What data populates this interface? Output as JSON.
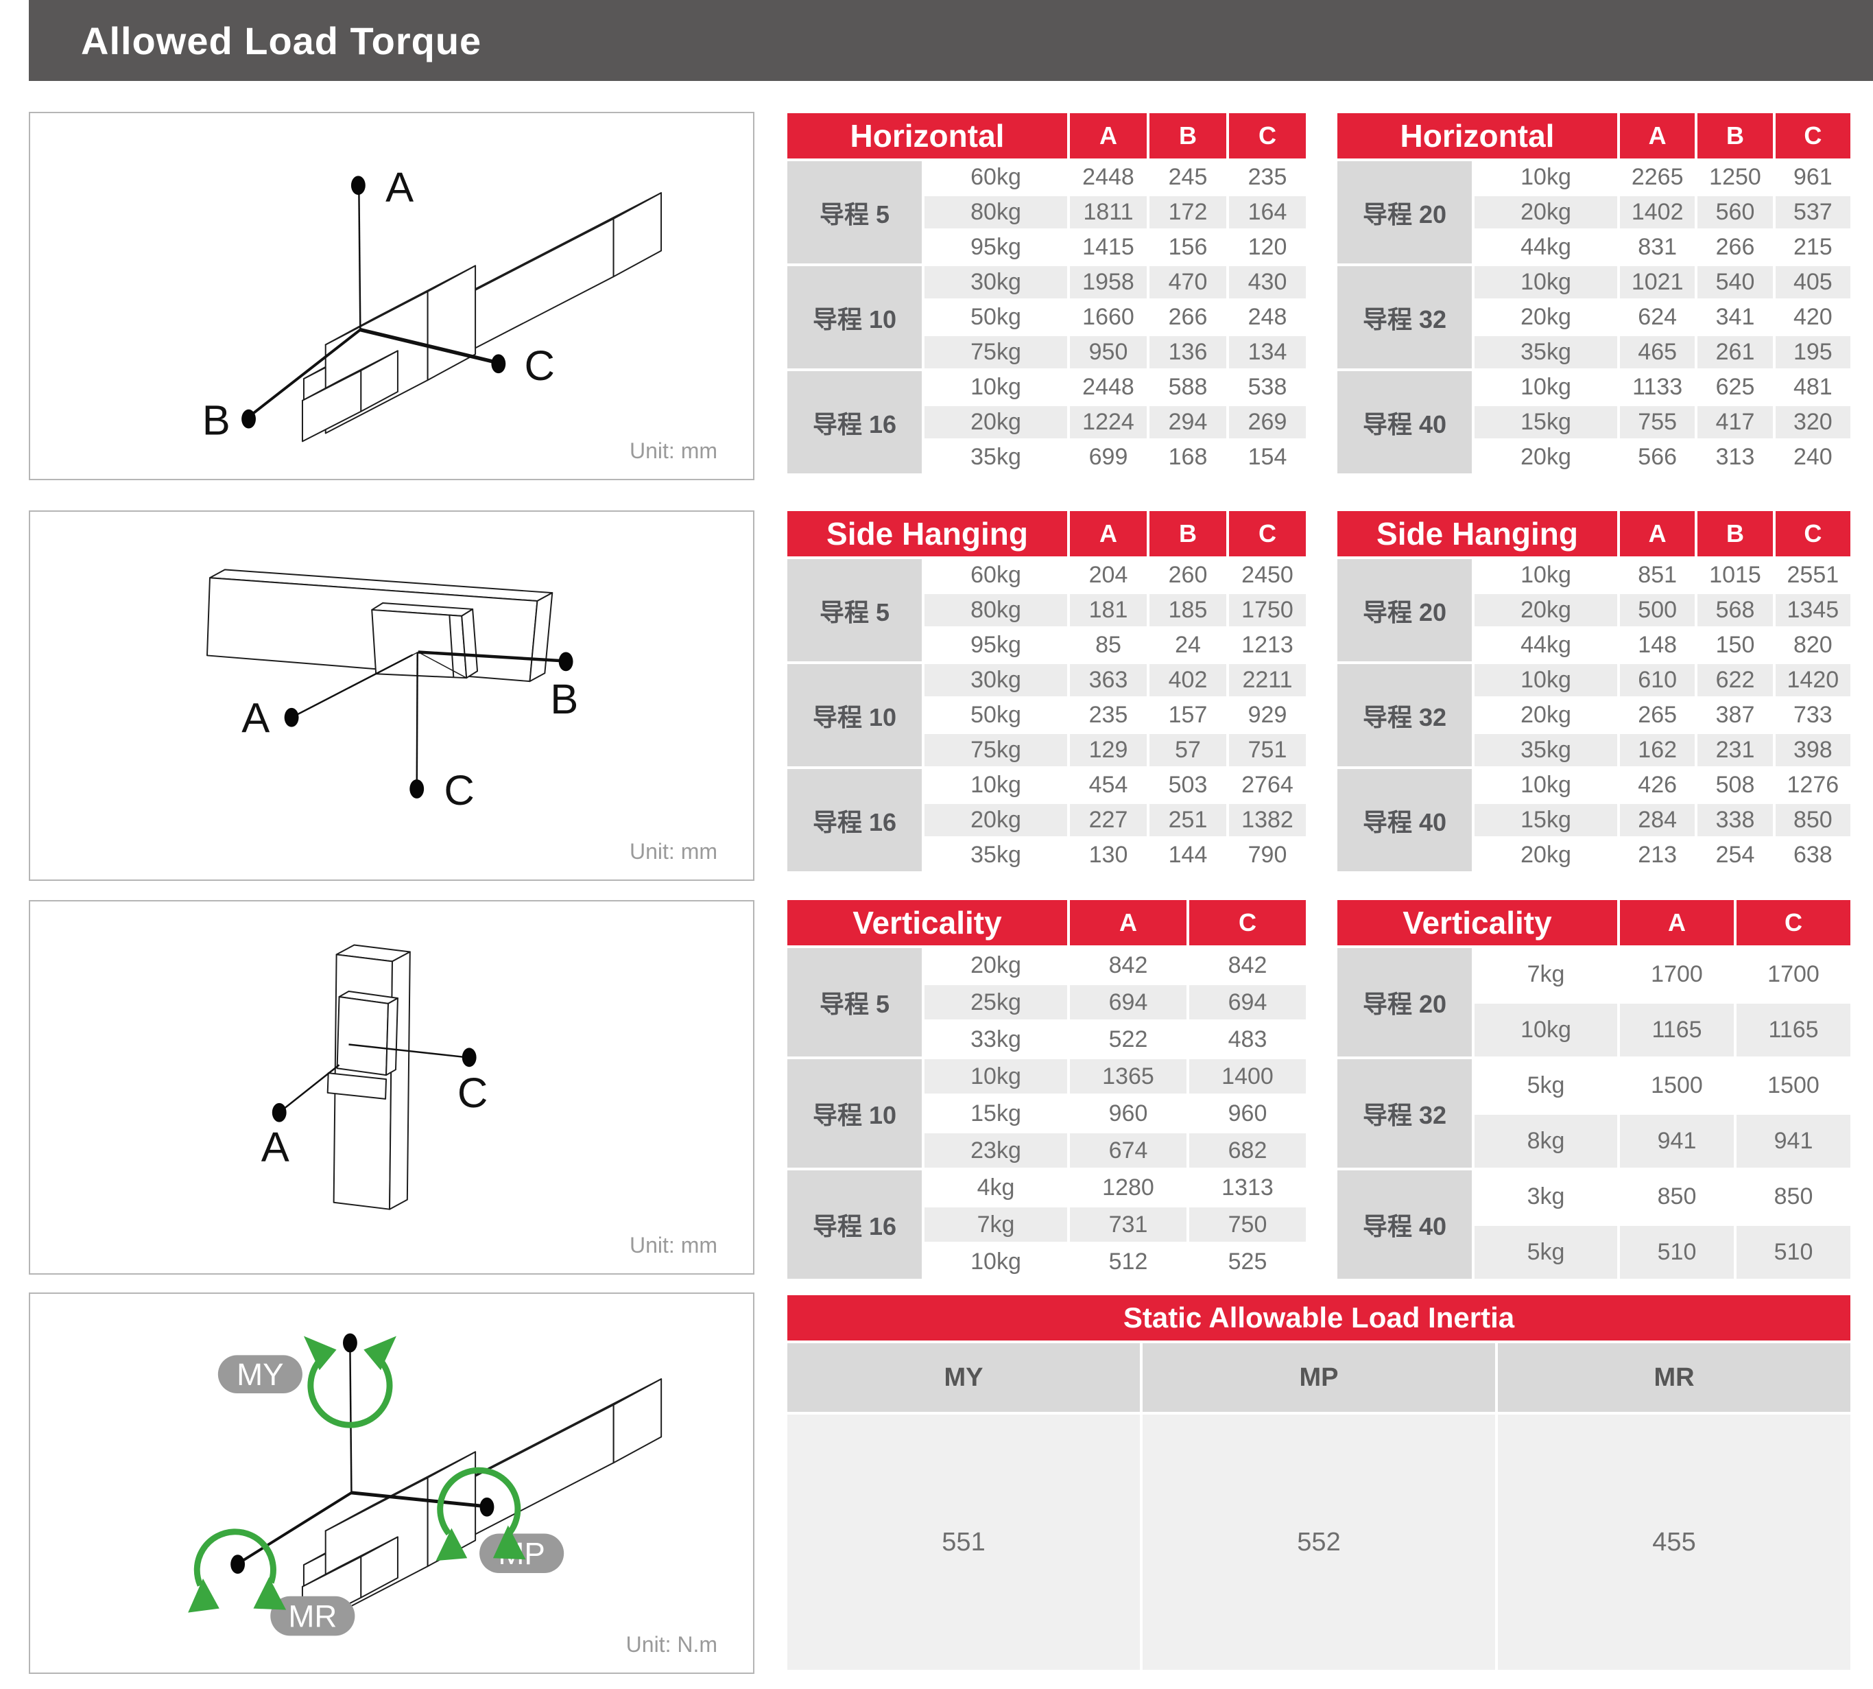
{
  "header": {
    "title": "Allowed Load Torque"
  },
  "diagrams": {
    "horizontal": {
      "axes": [
        "A",
        "B",
        "C"
      ],
      "unit": "Unit: mm"
    },
    "side_hanging": {
      "axes": [
        "A",
        "B",
        "C"
      ],
      "unit": "Unit: mm"
    },
    "verticality": {
      "axes": [
        "A",
        "C"
      ],
      "unit": "Unit: mm"
    },
    "moments": {
      "axes": [
        "MY",
        "MP",
        "MR"
      ],
      "unit": "Unit: N.m"
    }
  },
  "colors": {
    "accent_red": "#e32138",
    "header_bar_gray": "#595757",
    "lead_cell_gray": "#d9d9d9",
    "stripe_gray": "#ececec",
    "arrow_green": "#3aa73f",
    "pill_gray": "#9a9a9a"
  },
  "tables": [
    {
      "id": "horizontal-left",
      "title": "Horizontal",
      "columns": [
        "A",
        "B",
        "C"
      ],
      "groups": [
        {
          "lead": "导程 5",
          "rows": [
            [
              "60kg",
              "2448",
              "245",
              "235"
            ],
            [
              "80kg",
              "1811",
              "172",
              "164"
            ],
            [
              "95kg",
              "1415",
              "156",
              "120"
            ]
          ]
        },
        {
          "lead": "导程 10",
          "rows": [
            [
              "30kg",
              "1958",
              "470",
              "430"
            ],
            [
              "50kg",
              "1660",
              "266",
              "248"
            ],
            [
              "75kg",
              "950",
              "136",
              "134"
            ]
          ]
        },
        {
          "lead": "导程 16",
          "rows": [
            [
              "10kg",
              "2448",
              "588",
              "538"
            ],
            [
              "20kg",
              "1224",
              "294",
              "269"
            ],
            [
              "35kg",
              "699",
              "168",
              "154"
            ]
          ]
        }
      ]
    },
    {
      "id": "horizontal-right",
      "title": "Horizontal",
      "columns": [
        "A",
        "B",
        "C"
      ],
      "groups": [
        {
          "lead": "导程 20",
          "rows": [
            [
              "10kg",
              "2265",
              "1250",
              "961"
            ],
            [
              "20kg",
              "1402",
              "560",
              "537"
            ],
            [
              "44kg",
              "831",
              "266",
              "215"
            ]
          ]
        },
        {
          "lead": "导程 32",
          "rows": [
            [
              "10kg",
              "1021",
              "540",
              "405"
            ],
            [
              "20kg",
              "624",
              "341",
              "420"
            ],
            [
              "35kg",
              "465",
              "261",
              "195"
            ]
          ]
        },
        {
          "lead": "导程 40",
          "rows": [
            [
              "10kg",
              "1133",
              "625",
              "481"
            ],
            [
              "15kg",
              "755",
              "417",
              "320"
            ],
            [
              "20kg",
              "566",
              "313",
              "240"
            ]
          ]
        }
      ]
    },
    {
      "id": "side-hanging-left",
      "title": "Side Hanging",
      "columns": [
        "A",
        "B",
        "C"
      ],
      "groups": [
        {
          "lead": "导程 5",
          "rows": [
            [
              "60kg",
              "204",
              "260",
              "2450"
            ],
            [
              "80kg",
              "181",
              "185",
              "1750"
            ],
            [
              "95kg",
              "85",
              "24",
              "1213"
            ]
          ]
        },
        {
          "lead": "导程 10",
          "rows": [
            [
              "30kg",
              "363",
              "402",
              "2211"
            ],
            [
              "50kg",
              "235",
              "157",
              "929"
            ],
            [
              "75kg",
              "129",
              "57",
              "751"
            ]
          ]
        },
        {
          "lead": "导程 16",
          "rows": [
            [
              "10kg",
              "454",
              "503",
              "2764"
            ],
            [
              "20kg",
              "227",
              "251",
              "1382"
            ],
            [
              "35kg",
              "130",
              "144",
              "790"
            ]
          ]
        }
      ]
    },
    {
      "id": "side-hanging-right",
      "title": "Side Hanging",
      "columns": [
        "A",
        "B",
        "C"
      ],
      "groups": [
        {
          "lead": "导程 20",
          "rows": [
            [
              "10kg",
              "851",
              "1015",
              "2551"
            ],
            [
              "20kg",
              "500",
              "568",
              "1345"
            ],
            [
              "44kg",
              "148",
              "150",
              "820"
            ]
          ]
        },
        {
          "lead": "导程 32",
          "rows": [
            [
              "10kg",
              "610",
              "622",
              "1420"
            ],
            [
              "20kg",
              "265",
              "387",
              "733"
            ],
            [
              "35kg",
              "162",
              "231",
              "398"
            ]
          ]
        },
        {
          "lead": "导程 40",
          "rows": [
            [
              "10kg",
              "426",
              "508",
              "1276"
            ],
            [
              "15kg",
              "284",
              "338",
              "850"
            ],
            [
              "20kg",
              "213",
              "254",
              "638"
            ]
          ]
        }
      ]
    },
    {
      "id": "verticality-left",
      "title": "Verticality",
      "columns": [
        "A",
        "C"
      ],
      "groups": [
        {
          "lead": "导程 5",
          "rows": [
            [
              "20kg",
              "842",
              "842"
            ],
            [
              "25kg",
              "694",
              "694"
            ],
            [
              "33kg",
              "522",
              "483"
            ]
          ]
        },
        {
          "lead": "导程 10",
          "rows": [
            [
              "10kg",
              "1365",
              "1400"
            ],
            [
              "15kg",
              "960",
              "960"
            ],
            [
              "23kg",
              "674",
              "682"
            ]
          ]
        },
        {
          "lead": "导程 16",
          "rows": [
            [
              "4kg",
              "1280",
              "1313"
            ],
            [
              "7kg",
              "731",
              "750"
            ],
            [
              "10kg",
              "512",
              "525"
            ]
          ]
        }
      ]
    },
    {
      "id": "verticality-right",
      "title": "Verticality",
      "columns": [
        "A",
        "C"
      ],
      "groups": [
        {
          "lead": "导程 20",
          "rows": [
            [
              "7kg",
              "1700",
              "1700"
            ],
            [
              "10kg",
              "1165",
              "1165"
            ]
          ]
        },
        {
          "lead": "导程 32",
          "rows": [
            [
              "5kg",
              "1500",
              "1500"
            ],
            [
              "8kg",
              "941",
              "941"
            ]
          ]
        },
        {
          "lead": "导程 40",
          "rows": [
            [
              "3kg",
              "850",
              "850"
            ],
            [
              "5kg",
              "510",
              "510"
            ]
          ]
        }
      ]
    }
  ],
  "inertia": {
    "title": "Static Allowable Load Inertia",
    "columns": [
      "MY",
      "MP",
      "MR"
    ],
    "values": [
      "551",
      "552",
      "455"
    ]
  }
}
